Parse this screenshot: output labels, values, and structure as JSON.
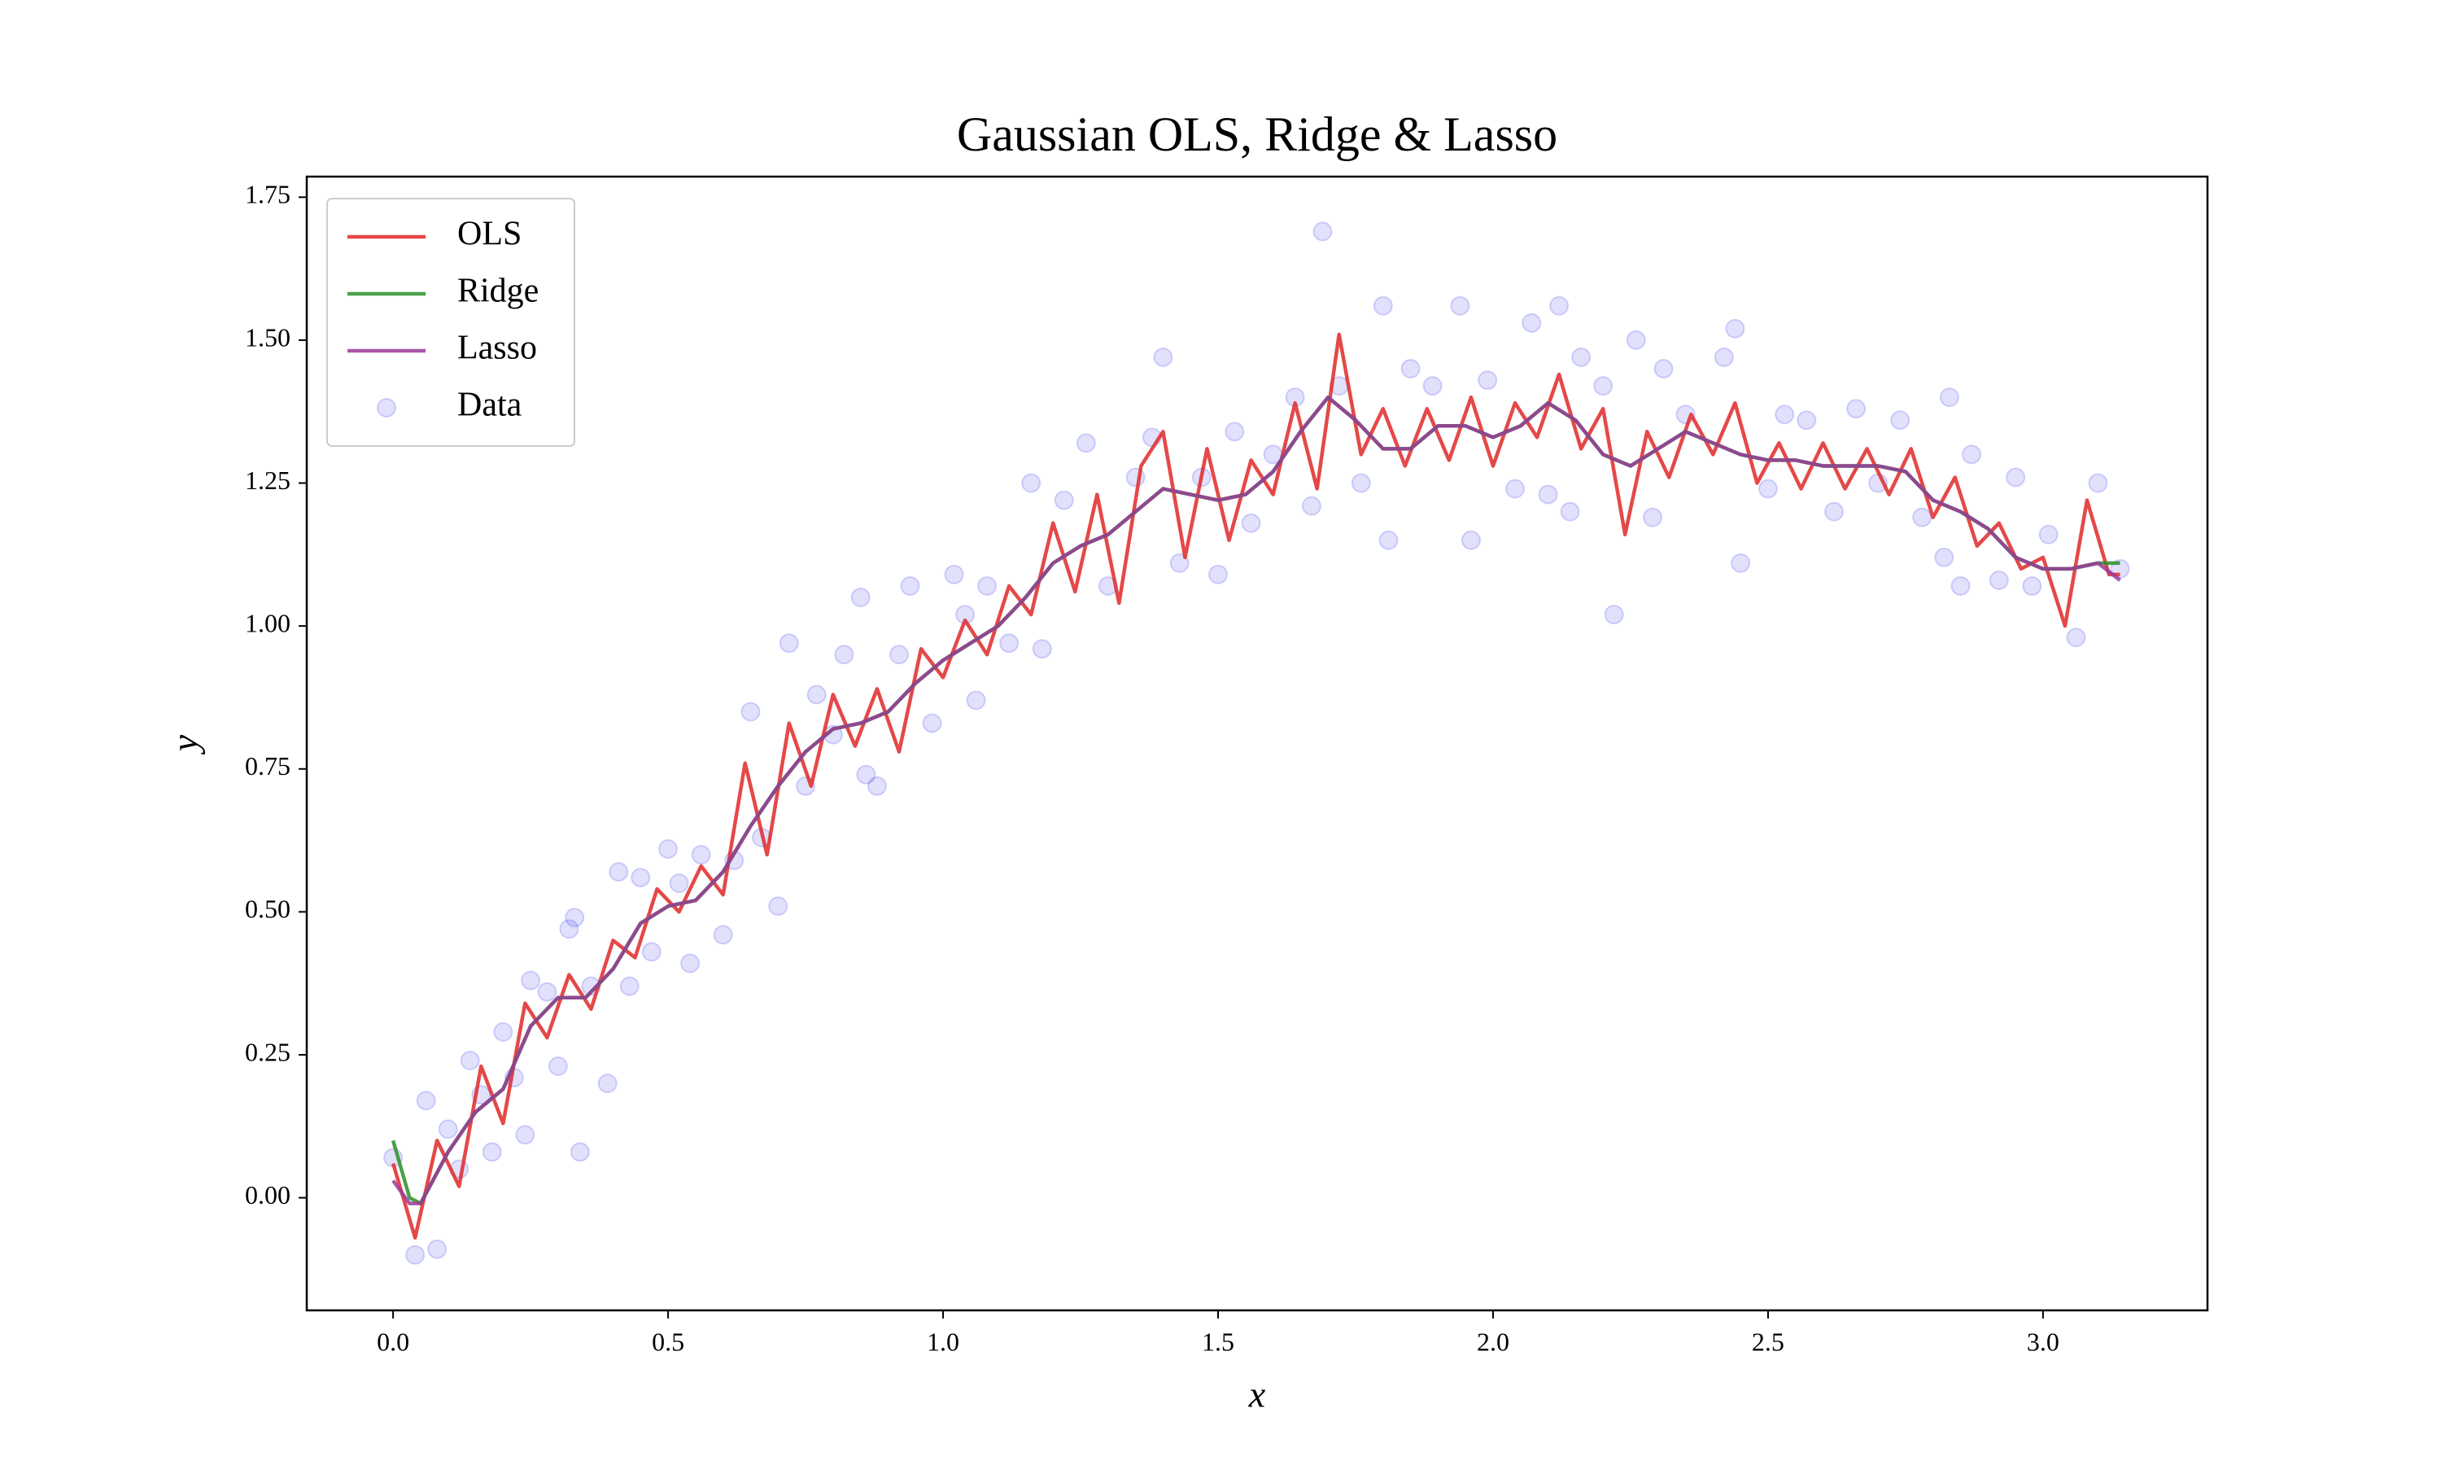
{
  "chart_data": {
    "type": "line",
    "title": "Gaussian OLS, Ridge & Lasso",
    "xlabel": "x",
    "ylabel": "y",
    "xlim": [
      -0.157,
      3.299
    ],
    "ylim": [
      -0.197,
      1.786
    ],
    "xticks": [
      {
        "value": 0,
        "label": "0.0"
      },
      0.5,
      {
        "value": 1,
        "label": "1.0"
      },
      1.5,
      {
        "value": 2,
        "label": "2.0"
      },
      2.5,
      {
        "value": 3,
        "label": "3.0"
      }
    ],
    "yticks": [
      {
        "value": 0,
        "label": "0.00"
      },
      0.25,
      {
        "value": 0.5,
        "label": "0.50"
      },
      0.75,
      {
        "value": 1,
        "label": "1.00"
      },
      1.25,
      {
        "value": 1.5,
        "label": "1.50"
      },
      1.75
    ],
    "legend": "upper left",
    "series": [
      {
        "name": "OLS",
        "type": "line",
        "color": "#e02828",
        "x": [
          0,
          0.04,
          0.08,
          0.12,
          0.16,
          0.2,
          0.24,
          0.28,
          0.32,
          0.36,
          0.4,
          0.44,
          0.48,
          0.52,
          0.56,
          0.6,
          0.64,
          0.68,
          0.72,
          0.76,
          0.8,
          0.84,
          0.88,
          0.92,
          0.96,
          1.0,
          1.04,
          1.08,
          1.12,
          1.16,
          1.2,
          1.24,
          1.28,
          1.32,
          1.36,
          1.4,
          1.44,
          1.48,
          1.52,
          1.56,
          1.6,
          1.64,
          1.68,
          1.72,
          1.76,
          1.8,
          1.84,
          1.88,
          1.92,
          1.96,
          2.0,
          2.04,
          2.08,
          2.12,
          2.16,
          2.2,
          2.24,
          2.28,
          2.32,
          2.36,
          2.4,
          2.44,
          2.48,
          2.52,
          2.56,
          2.6,
          2.64,
          2.68,
          2.72,
          2.76,
          2.8,
          2.84,
          2.88,
          2.92,
          2.96,
          3.0,
          3.04,
          3.08,
          3.12,
          3.14
        ],
        "values": [
          0.06,
          -0.07,
          0.1,
          0.02,
          0.23,
          0.13,
          0.34,
          0.28,
          0.39,
          0.33,
          0.45,
          0.42,
          0.54,
          0.5,
          0.58,
          0.53,
          0.76,
          0.6,
          0.83,
          0.72,
          0.88,
          0.79,
          0.89,
          0.78,
          0.96,
          0.91,
          1.01,
          0.95,
          1.07,
          1.02,
          1.18,
          1.06,
          1.23,
          1.04,
          1.28,
          1.34,
          1.12,
          1.31,
          1.15,
          1.29,
          1.23,
          1.39,
          1.24,
          1.51,
          1.3,
          1.38,
          1.28,
          1.38,
          1.29,
          1.4,
          1.28,
          1.39,
          1.33,
          1.44,
          1.31,
          1.38,
          1.16,
          1.34,
          1.26,
          1.37,
          1.3,
          1.39,
          1.25,
          1.32,
          1.24,
          1.32,
          1.24,
          1.31,
          1.23,
          1.31,
          1.19,
          1.26,
          1.14,
          1.18,
          1.1,
          1.12,
          1.0,
          1.22,
          1.09,
          1.09
        ]
      },
      {
        "name": "Ridge",
        "type": "line",
        "color": "#2a8f2a",
        "x": [
          0,
          0.03,
          0.05,
          0.1,
          0.15,
          0.2,
          0.25,
          0.3,
          0.35,
          0.4,
          0.45,
          0.5,
          0.55,
          0.6,
          0.65,
          0.7,
          0.75,
          0.8,
          0.85,
          0.9,
          0.95,
          1.0,
          1.05,
          1.1,
          1.15,
          1.2,
          1.25,
          1.3,
          1.35,
          1.4,
          1.45,
          1.5,
          1.55,
          1.6,
          1.65,
          1.7,
          1.75,
          1.8,
          1.85,
          1.9,
          1.95,
          2.0,
          2.05,
          2.1,
          2.15,
          2.2,
          2.25,
          2.3,
          2.35,
          2.4,
          2.45,
          2.5,
          2.55,
          2.6,
          2.65,
          2.7,
          2.75,
          2.8,
          2.85,
          2.9,
          2.95,
          3.0,
          3.05,
          3.1,
          3.14
        ],
        "values": [
          0.1,
          0.0,
          -0.01,
          0.08,
          0.15,
          0.19,
          0.3,
          0.35,
          0.35,
          0.4,
          0.48,
          0.51,
          0.52,
          0.57,
          0.65,
          0.72,
          0.78,
          0.82,
          0.83,
          0.85,
          0.9,
          0.94,
          0.97,
          1.0,
          1.05,
          1.11,
          1.14,
          1.16,
          1.2,
          1.24,
          1.23,
          1.22,
          1.23,
          1.27,
          1.34,
          1.4,
          1.36,
          1.31,
          1.31,
          1.35,
          1.35,
          1.33,
          1.35,
          1.39,
          1.36,
          1.3,
          1.28,
          1.31,
          1.34,
          1.32,
          1.3,
          1.29,
          1.29,
          1.28,
          1.28,
          1.28,
          1.27,
          1.22,
          1.2,
          1.17,
          1.12,
          1.1,
          1.1,
          1.11,
          1.11
        ]
      },
      {
        "name": "Lasso",
        "type": "line",
        "color": "#9a3a9a",
        "x": [
          0,
          0.03,
          0.05,
          0.1,
          0.15,
          0.2,
          0.25,
          0.3,
          0.35,
          0.4,
          0.45,
          0.5,
          0.55,
          0.6,
          0.65,
          0.7,
          0.75,
          0.8,
          0.85,
          0.9,
          0.95,
          1.0,
          1.05,
          1.1,
          1.15,
          1.2,
          1.25,
          1.3,
          1.35,
          1.4,
          1.45,
          1.5,
          1.55,
          1.6,
          1.65,
          1.7,
          1.75,
          1.8,
          1.85,
          1.9,
          1.95,
          2.0,
          2.05,
          2.1,
          2.15,
          2.2,
          2.25,
          2.3,
          2.35,
          2.4,
          2.45,
          2.5,
          2.55,
          2.6,
          2.65,
          2.7,
          2.75,
          2.8,
          2.85,
          2.9,
          2.95,
          3.0,
          3.05,
          3.1,
          3.14
        ],
        "values": [
          0.03,
          -0.01,
          -0.01,
          0.08,
          0.15,
          0.19,
          0.3,
          0.35,
          0.35,
          0.4,
          0.48,
          0.51,
          0.52,
          0.57,
          0.65,
          0.72,
          0.78,
          0.82,
          0.83,
          0.85,
          0.9,
          0.94,
          0.97,
          1.0,
          1.05,
          1.11,
          1.14,
          1.16,
          1.2,
          1.24,
          1.23,
          1.22,
          1.23,
          1.27,
          1.34,
          1.4,
          1.36,
          1.31,
          1.31,
          1.35,
          1.35,
          1.33,
          1.35,
          1.39,
          1.36,
          1.3,
          1.28,
          1.31,
          1.34,
          1.32,
          1.3,
          1.29,
          1.29,
          1.28,
          1.28,
          1.28,
          1.27,
          1.22,
          1.2,
          1.17,
          1.12,
          1.1,
          1.1,
          1.11,
          1.08
        ]
      },
      {
        "name": "Data",
        "type": "scatter",
        "color": "#3333ee",
        "x": [
          0,
          0.04,
          0.06,
          0.08,
          0.1,
          0.12,
          0.14,
          0.16,
          0.18,
          0.2,
          0.22,
          0.24,
          0.25,
          0.28,
          0.3,
          0.32,
          0.33,
          0.34,
          0.36,
          0.39,
          0.41,
          0.43,
          0.45,
          0.47,
          0.5,
          0.52,
          0.54,
          0.56,
          0.6,
          0.62,
          0.65,
          0.67,
          0.7,
          0.72,
          0.75,
          0.77,
          0.8,
          0.82,
          0.85,
          0.86,
          0.88,
          0.92,
          0.94,
          0.98,
          1.02,
          1.04,
          1.06,
          1.08,
          1.12,
          1.16,
          1.18,
          1.22,
          1.26,
          1.3,
          1.35,
          1.38,
          1.4,
          1.43,
          1.47,
          1.5,
          1.53,
          1.56,
          1.6,
          1.64,
          1.67,
          1.69,
          1.72,
          1.76,
          1.8,
          1.81,
          1.85,
          1.89,
          1.94,
          1.96,
          1.99,
          2.04,
          2.07,
          2.1,
          2.12,
          2.14,
          2.16,
          2.2,
          2.22,
          2.26,
          2.29,
          2.31,
          2.35,
          2.42,
          2.44,
          2.45,
          2.5,
          2.53,
          2.57,
          2.62,
          2.66,
          2.7,
          2.74,
          2.78,
          2.82,
          2.83,
          2.85,
          2.87,
          2.92,
          2.95,
          2.98,
          3.01,
          3.06,
          3.1,
          3.14
        ],
        "values": [
          0.07,
          -0.1,
          0.17,
          -0.09,
          0.12,
          0.05,
          0.24,
          0.18,
          0.08,
          0.29,
          0.21,
          0.11,
          0.38,
          0.36,
          0.23,
          0.47,
          0.49,
          0.08,
          0.37,
          0.2,
          0.57,
          0.37,
          0.56,
          0.43,
          0.61,
          0.55,
          0.41,
          0.6,
          0.46,
          0.59,
          0.85,
          0.63,
          0.51,
          0.97,
          0.72,
          0.88,
          0.81,
          0.95,
          1.05,
          0.74,
          0.72,
          0.95,
          1.07,
          0.83,
          1.09,
          1.02,
          0.87,
          1.07,
          0.97,
          1.25,
          0.96,
          1.22,
          1.32,
          1.07,
          1.26,
          1.33,
          1.47,
          1.11,
          1.26,
          1.09,
          1.34,
          1.18,
          1.3,
          1.4,
          1.21,
          1.69,
          1.42,
          1.25,
          1.56,
          1.15,
          1.45,
          1.42,
          1.56,
          1.15,
          1.43,
          1.24,
          1.53,
          1.23,
          1.56,
          1.2,
          1.47,
          1.42,
          1.02,
          1.5,
          1.19,
          1.45,
          1.37,
          1.47,
          1.52,
          1.11,
          1.24,
          1.37,
          1.36,
          1.2,
          1.38,
          1.25,
          1.36,
          1.19,
          1.12,
          1.4,
          1.07,
          1.3,
          1.08,
          1.26,
          1.07,
          1.16,
          0.98,
          1.25,
          1.1
        ]
      }
    ]
  }
}
